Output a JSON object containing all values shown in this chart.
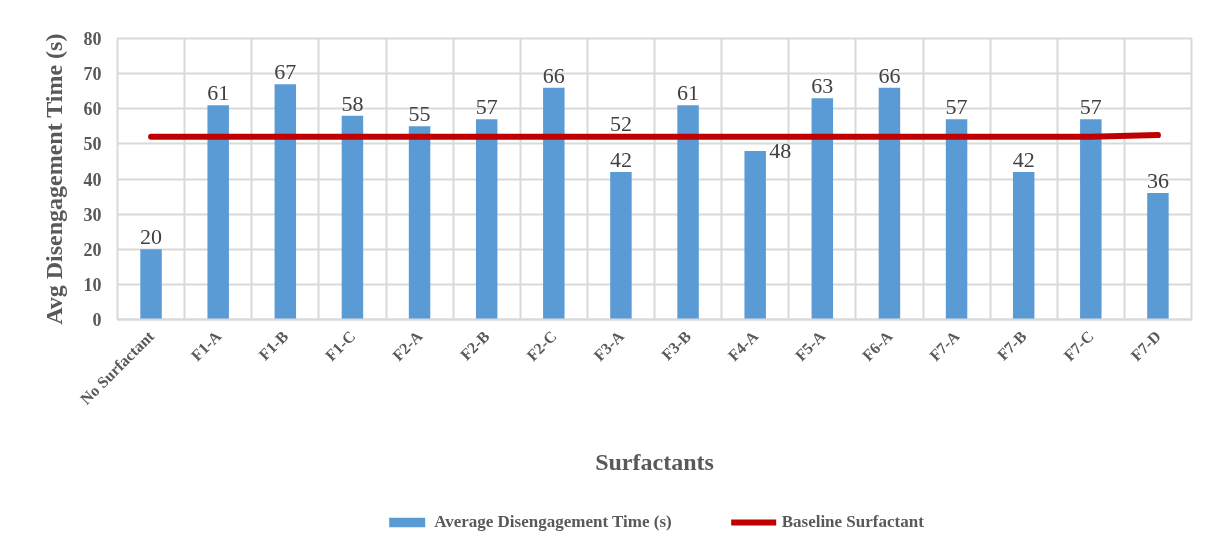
{
  "chart_data": {
    "type": "bar",
    "xlabel": "Surfactants",
    "ylabel": "Avg Disengagement Time (s)",
    "categories": [
      "No Surfactant",
      "F1-A",
      "F1-B",
      "F1-C",
      "F2-A",
      "F2-B",
      "F2-C",
      "F3-A",
      "F3-B",
      "F4-A",
      "F5-A",
      "F6-A",
      "F7-A",
      "F7-B",
      "F7-C",
      "F7-D"
    ],
    "series": [
      {
        "name": "Average Disengagement Time (s)",
        "color": "#5b9bd5",
        "values": [
          20,
          61,
          67,
          58,
          55,
          57,
          66,
          42,
          61,
          48,
          63,
          66,
          57,
          42,
          57,
          36
        ],
        "value_labels": [
          "20",
          "61",
          "67",
          "58",
          "55",
          "57",
          "66",
          "42",
          "61",
          "48",
          "63",
          "66",
          "57",
          "42",
          "57",
          "36"
        ]
      },
      {
        "name": "Baseline Surfactant",
        "type": "line",
        "color": "#c00000",
        "line_style": "solid",
        "values": [
          52,
          52,
          52,
          52,
          52,
          52,
          52,
          52,
          52,
          52,
          52,
          52,
          52,
          52,
          52,
          52.5
        ],
        "value_labels": [
          null,
          null,
          null,
          null,
          null,
          null,
          null,
          "52",
          null,
          null,
          null,
          null,
          null,
          null,
          null,
          null
        ]
      }
    ],
    "ylim": [
      0,
      80
    ],
    "yticks": [
      0,
      10,
      20,
      30,
      40,
      50,
      60,
      70,
      80
    ],
    "grid": true,
    "legend": "bottom",
    "marker": "none"
  }
}
